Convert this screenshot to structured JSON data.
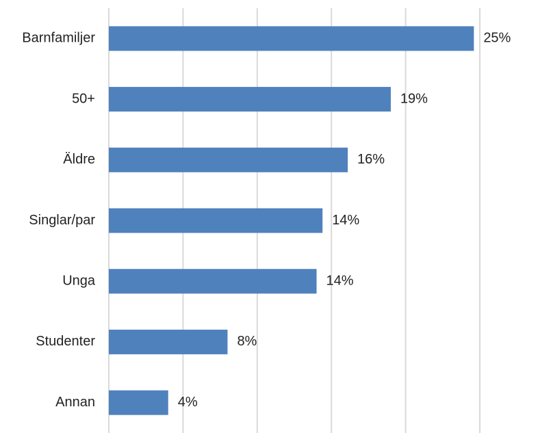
{
  "chart_data": {
    "type": "bar",
    "orientation": "horizontal",
    "categories": [
      "Barnfamiljer",
      "50+",
      "Äldre",
      "Singlar/par",
      "Unga",
      "Studenter",
      "Annan"
    ],
    "values": [
      24.6,
      19,
      16.1,
      14.4,
      14,
      8,
      4
    ],
    "value_labels": [
      "25%",
      "19%",
      "16%",
      "14%",
      "14%",
      "8%",
      "4%"
    ],
    "color": "#4f81bd",
    "xlim": [
      0,
      25
    ],
    "xticks": [
      0,
      5,
      10,
      15,
      20,
      25
    ],
    "grid": true
  }
}
